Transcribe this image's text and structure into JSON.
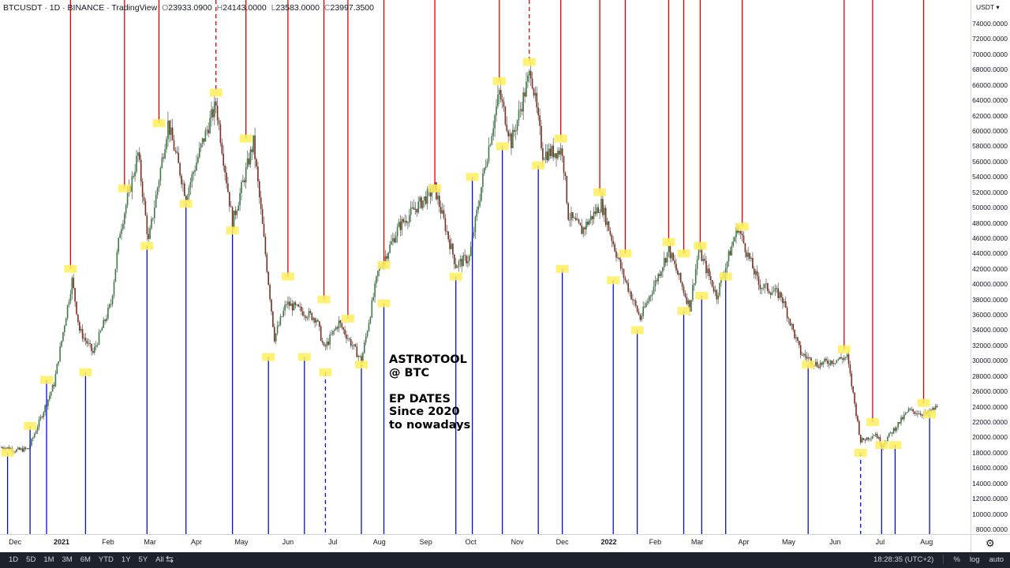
{
  "legend": {
    "symbol": "BTCUSDT",
    "sep1": "·",
    "interval": "1D",
    "sep2": "·",
    "exchange": "BINANCE",
    "sep3": "·",
    "platform": "TradingView",
    "open_label": "O",
    "open": "23933.0900",
    "high_label": "H",
    "high": "24143.0000",
    "low_label": "L",
    "low": "23583.0000",
    "close_label": "C",
    "close": "23997.3500"
  },
  "annotation": "ASTROTOOL\n@ BTC\n\nEP DATES\nSince 2020\nto nowadays",
  "price_axis": {
    "currency": "USDT ▾",
    "ticks": [
      "74000.0000",
      "72000.0000",
      "70000.0000",
      "68000.0000",
      "66000.0000",
      "64000.0000",
      "62000.0000",
      "60000.0000",
      "58000.0000",
      "56000.0000",
      "54000.0000",
      "52000.0000",
      "50000.0000",
      "48000.0000",
      "46000.0000",
      "44000.0000",
      "42000.0000",
      "40000.0000",
      "38000.0000",
      "36000.0000",
      "34000.0000",
      "32000.0000",
      "30000.0000",
      "28000.0000",
      "26000.0000",
      "24000.0000",
      "22000.0000",
      "20000.0000",
      "18000.0000",
      "16000.0000",
      "14000.0000",
      "12000.0000",
      "10000.0000",
      "8000.0000"
    ]
  },
  "time_axis": {
    "labels": [
      "Dec",
      "2021",
      "Feb",
      "Mar",
      "Apr",
      "May",
      "Jun",
      "Jul",
      "Aug",
      "Sep",
      "Oct",
      "Nov",
      "Dec",
      "2022",
      "Feb",
      "Mar",
      "Apr",
      "May",
      "Jun",
      "Jul",
      "Aug"
    ]
  },
  "bottom_bar": {
    "ranges": [
      "1D",
      "5D",
      "1M",
      "3M",
      "6M",
      "YTD",
      "1Y",
      "5Y",
      "All"
    ],
    "clock": "18:28:35 (UTC+2)",
    "percent": "%",
    "log": "log",
    "auto": "auto"
  },
  "colors": {
    "up": "#26a69a",
    "line_up": "#3a7d44",
    "line_down": "#7b2d1e",
    "top_marker": "#e00000",
    "bottom_marker": "#0010cc",
    "marker_box": "#ffef5a"
  },
  "icons": {
    "compare": "compare-icon",
    "settings": "gear-icon"
  },
  "chart_data": {
    "type": "candlestick-with-event-lines",
    "symbol": "BTCUSDT",
    "ylim": [
      8000,
      74000
    ],
    "price_path": [
      [
        "2020-11-25",
        18700
      ],
      [
        "2020-12-01",
        18300
      ],
      [
        "2020-12-10",
        18500
      ],
      [
        "2020-12-17",
        22000
      ],
      [
        "2020-12-27",
        27000
      ],
      [
        "2021-01-08",
        40500
      ],
      [
        "2021-01-13",
        34000
      ],
      [
        "2021-01-22",
        31000
      ],
      [
        "2021-02-03",
        37500
      ],
      [
        "2021-02-09",
        47000
      ],
      [
        "2021-02-21",
        57000
      ],
      [
        "2021-02-28",
        45500
      ],
      [
        "2021-03-13",
        61000
      ],
      [
        "2021-03-25",
        51500
      ],
      [
        "2021-04-05",
        58500
      ],
      [
        "2021-04-14",
        63500
      ],
      [
        "2021-04-25",
        48000
      ],
      [
        "2021-05-09",
        58500
      ],
      [
        "2021-05-23",
        33000
      ],
      [
        "2021-05-31",
        37500
      ],
      [
        "2021-06-10",
        36500
      ],
      [
        "2021-06-20",
        35500
      ],
      [
        "2021-06-25",
        31500
      ],
      [
        "2021-07-05",
        35000
      ],
      [
        "2021-07-20",
        30000
      ],
      [
        "2021-07-31",
        41500
      ],
      [
        "2021-08-14",
        47500
      ],
      [
        "2021-08-23",
        49500
      ],
      [
        "2021-09-07",
        52500
      ],
      [
        "2021-09-21",
        42500
      ],
      [
        "2021-09-30",
        43500
      ],
      [
        "2021-10-10",
        55000
      ],
      [
        "2021-10-20",
        65000
      ],
      [
        "2021-10-28",
        58500
      ],
      [
        "2021-11-10",
        68000
      ],
      [
        "2021-11-18",
        57000
      ],
      [
        "2021-12-01",
        57500
      ],
      [
        "2021-12-05",
        49000
      ],
      [
        "2021-12-14",
        47000
      ],
      [
        "2021-12-27",
        50500
      ],
      [
        "2022-01-10",
        41500
      ],
      [
        "2022-01-22",
        35500
      ],
      [
        "2022-02-10",
        44500
      ],
      [
        "2022-02-24",
        37000
      ],
      [
        "2022-03-02",
        44500
      ],
      [
        "2022-03-14",
        38500
      ],
      [
        "2022-03-28",
        47500
      ],
      [
        "2022-04-11",
        40000
      ],
      [
        "2022-04-26",
        38500
      ],
      [
        "2022-05-09",
        31000
      ],
      [
        "2022-05-20",
        29500
      ],
      [
        "2022-06-09",
        30500
      ],
      [
        "2022-06-18",
        19500
      ],
      [
        "2022-06-28",
        20500
      ],
      [
        "2022-07-02",
        19000
      ],
      [
        "2022-07-20",
        23500
      ],
      [
        "2022-08-01",
        23000
      ],
      [
        "2022-08-08",
        24000
      ]
    ],
    "event_markers": [
      {
        "type": "top",
        "date": "2021-01-07",
        "price": 42000
      },
      {
        "type": "top",
        "date": "2021-02-12",
        "price": 52500
      },
      {
        "type": "top",
        "date": "2021-03-07",
        "price": 61000
      },
      {
        "type": "top",
        "date": "2021-04-14",
        "price": 65000,
        "dashed": true
      },
      {
        "type": "top",
        "date": "2021-05-04",
        "price": 59000
      },
      {
        "type": "top",
        "date": "2021-06-01",
        "price": 41000
      },
      {
        "type": "top",
        "date": "2021-06-25",
        "price": 38000
      },
      {
        "type": "top",
        "date": "2021-07-11",
        "price": 35500
      },
      {
        "type": "top",
        "date": "2021-08-04",
        "price": 42500
      },
      {
        "type": "top",
        "date": "2021-09-07",
        "price": 52500
      },
      {
        "type": "top",
        "date": "2021-10-20",
        "price": 66500
      },
      {
        "type": "top",
        "date": "2021-11-09",
        "price": 69000,
        "dashed": true
      },
      {
        "type": "top",
        "date": "2021-11-30",
        "price": 59000
      },
      {
        "type": "top",
        "date": "2021-12-26",
        "price": 52000
      },
      {
        "type": "top",
        "date": "2022-01-12",
        "price": 44000
      },
      {
        "type": "top",
        "date": "2022-02-10",
        "price": 45500
      },
      {
        "type": "top",
        "date": "2022-02-20",
        "price": 44000
      },
      {
        "type": "top",
        "date": "2022-03-03",
        "price": 45000
      },
      {
        "type": "top",
        "date": "2022-03-31",
        "price": 47500
      },
      {
        "type": "top",
        "date": "2022-06-07",
        "price": 31500
      },
      {
        "type": "top",
        "date": "2022-06-26",
        "price": 22000
      },
      {
        "type": "top",
        "date": "2022-07-30",
        "price": 24500
      },
      {
        "type": "bottom",
        "date": "2020-11-26",
        "price": 18000
      },
      {
        "type": "bottom",
        "date": "2020-12-11",
        "price": 21500
      },
      {
        "type": "bottom",
        "date": "2020-12-22",
        "price": 27500
      },
      {
        "type": "bottom",
        "date": "2021-01-17",
        "price": 28500
      },
      {
        "type": "bottom",
        "date": "2021-02-27",
        "price": 45000
      },
      {
        "type": "bottom",
        "date": "2021-03-25",
        "price": 50500
      },
      {
        "type": "bottom",
        "date": "2021-04-25",
        "price": 47000
      },
      {
        "type": "bottom",
        "date": "2021-05-19",
        "price": 30500
      },
      {
        "type": "bottom",
        "date": "2021-06-12",
        "price": 30500
      },
      {
        "type": "bottom",
        "date": "2021-06-26",
        "price": 28500,
        "dashed": true
      },
      {
        "type": "bottom",
        "date": "2021-07-20",
        "price": 29500
      },
      {
        "type": "bottom",
        "date": "2021-08-04",
        "price": 37500
      },
      {
        "type": "bottom",
        "date": "2021-09-21",
        "price": 41000
      },
      {
        "type": "bottom",
        "date": "2021-10-02",
        "price": 54000
      },
      {
        "type": "bottom",
        "date": "2021-10-22",
        "price": 58000
      },
      {
        "type": "bottom",
        "date": "2021-11-15",
        "price": 55500
      },
      {
        "type": "bottom",
        "date": "2021-12-01",
        "price": 42000
      },
      {
        "type": "bottom",
        "date": "2022-01-04",
        "price": 40500
      },
      {
        "type": "bottom",
        "date": "2022-01-20",
        "price": 34000
      },
      {
        "type": "bottom",
        "date": "2022-02-20",
        "price": 36500
      },
      {
        "type": "bottom",
        "date": "2022-03-04",
        "price": 38500
      },
      {
        "type": "bottom",
        "date": "2022-03-20",
        "price": 41000
      },
      {
        "type": "bottom",
        "date": "2022-05-14",
        "price": 29500
      },
      {
        "type": "bottom",
        "date": "2022-06-18",
        "price": 18000,
        "dashed": true
      },
      {
        "type": "bottom",
        "date": "2022-07-02",
        "price": 19000
      },
      {
        "type": "bottom",
        "date": "2022-07-11",
        "price": 19000
      },
      {
        "type": "bottom",
        "date": "2022-08-03",
        "price": 23000
      }
    ]
  }
}
